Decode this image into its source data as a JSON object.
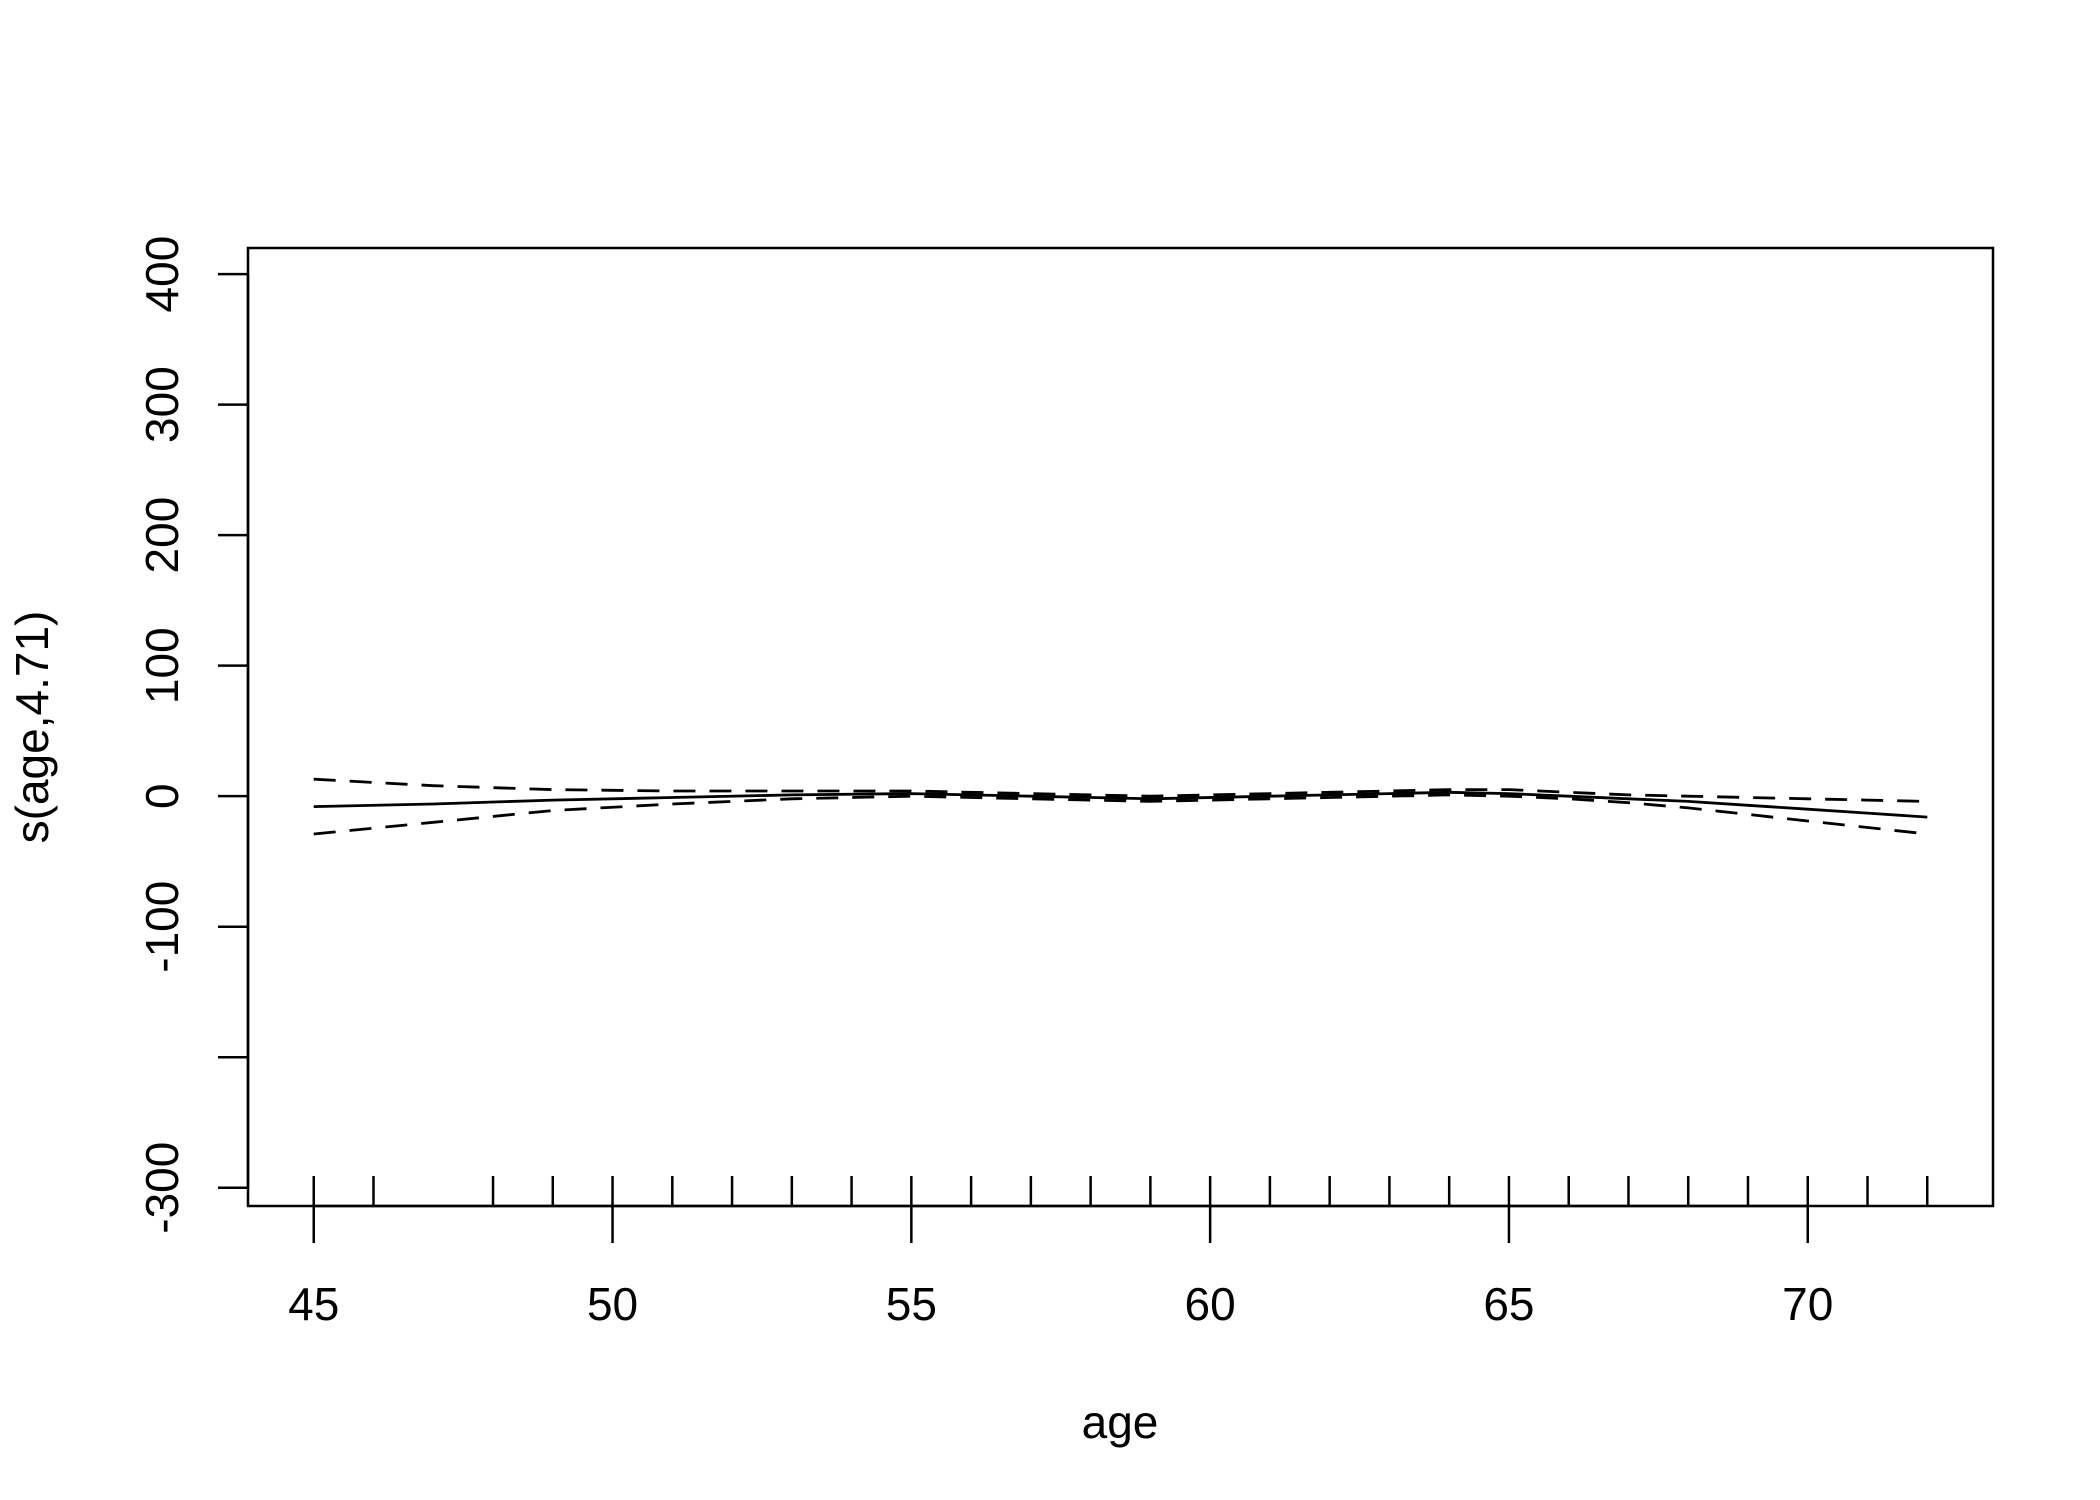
{
  "chart_data": {
    "type": "line",
    "title": "",
    "xlabel": "age",
    "ylabel": "s(age,4.71)",
    "xlim": [
      43.9,
      73.1
    ],
    "ylim": [
      -314,
      420
    ],
    "x_ticks": [
      45,
      50,
      55,
      60,
      65,
      70
    ],
    "y_ticks": [
      -300,
      -200,
      -100,
      0,
      100,
      200,
      300,
      400
    ],
    "y_tick_labels": [
      "-300",
      "",
      "-100",
      "0",
      "100",
      "200",
      "300",
      "400"
    ],
    "rug": [
      45,
      46,
      48,
      49,
      50,
      51,
      52,
      53,
      54,
      55,
      56,
      57,
      58,
      59,
      60,
      61,
      62,
      63,
      64,
      65,
      66,
      67,
      68,
      69,
      70,
      71,
      72
    ],
    "grid": false,
    "legend": "none",
    "series": [
      {
        "style": "solid",
        "x": [
          45,
          47,
          49,
          51,
          53,
          55,
          57,
          59,
          61,
          62,
          63,
          64,
          65,
          66,
          67,
          68,
          69,
          70,
          71,
          72
        ],
        "y": [
          -8,
          -6,
          -3,
          -1,
          1,
          2,
          0,
          -2,
          0,
          1,
          2,
          3,
          2,
          0,
          -2,
          -4,
          -7,
          -10,
          -13,
          -16
        ]
      },
      {
        "style": "dashed",
        "x": [
          45,
          47,
          49,
          51,
          53,
          55,
          57,
          59,
          61,
          62,
          63,
          64,
          65,
          66,
          67,
          68,
          69,
          70,
          71,
          72
        ],
        "y": [
          13,
          8,
          5,
          4,
          4,
          4,
          2,
          0,
          2,
          3,
          4,
          5,
          5,
          3,
          1,
          0,
          -1,
          -2,
          -3,
          -4
        ]
      },
      {
        "style": "dashed",
        "x": [
          45,
          47,
          49,
          51,
          53,
          55,
          57,
          59,
          61,
          62,
          63,
          64,
          65,
          66,
          67,
          68,
          69,
          70,
          71,
          72
        ],
        "y": [
          -29,
          -20,
          -11,
          -6,
          -2,
          0,
          -2,
          -4,
          -2,
          -1,
          0,
          1,
          0,
          -2,
          -5,
          -9,
          -14,
          -19,
          -24,
          -29
        ]
      }
    ]
  }
}
